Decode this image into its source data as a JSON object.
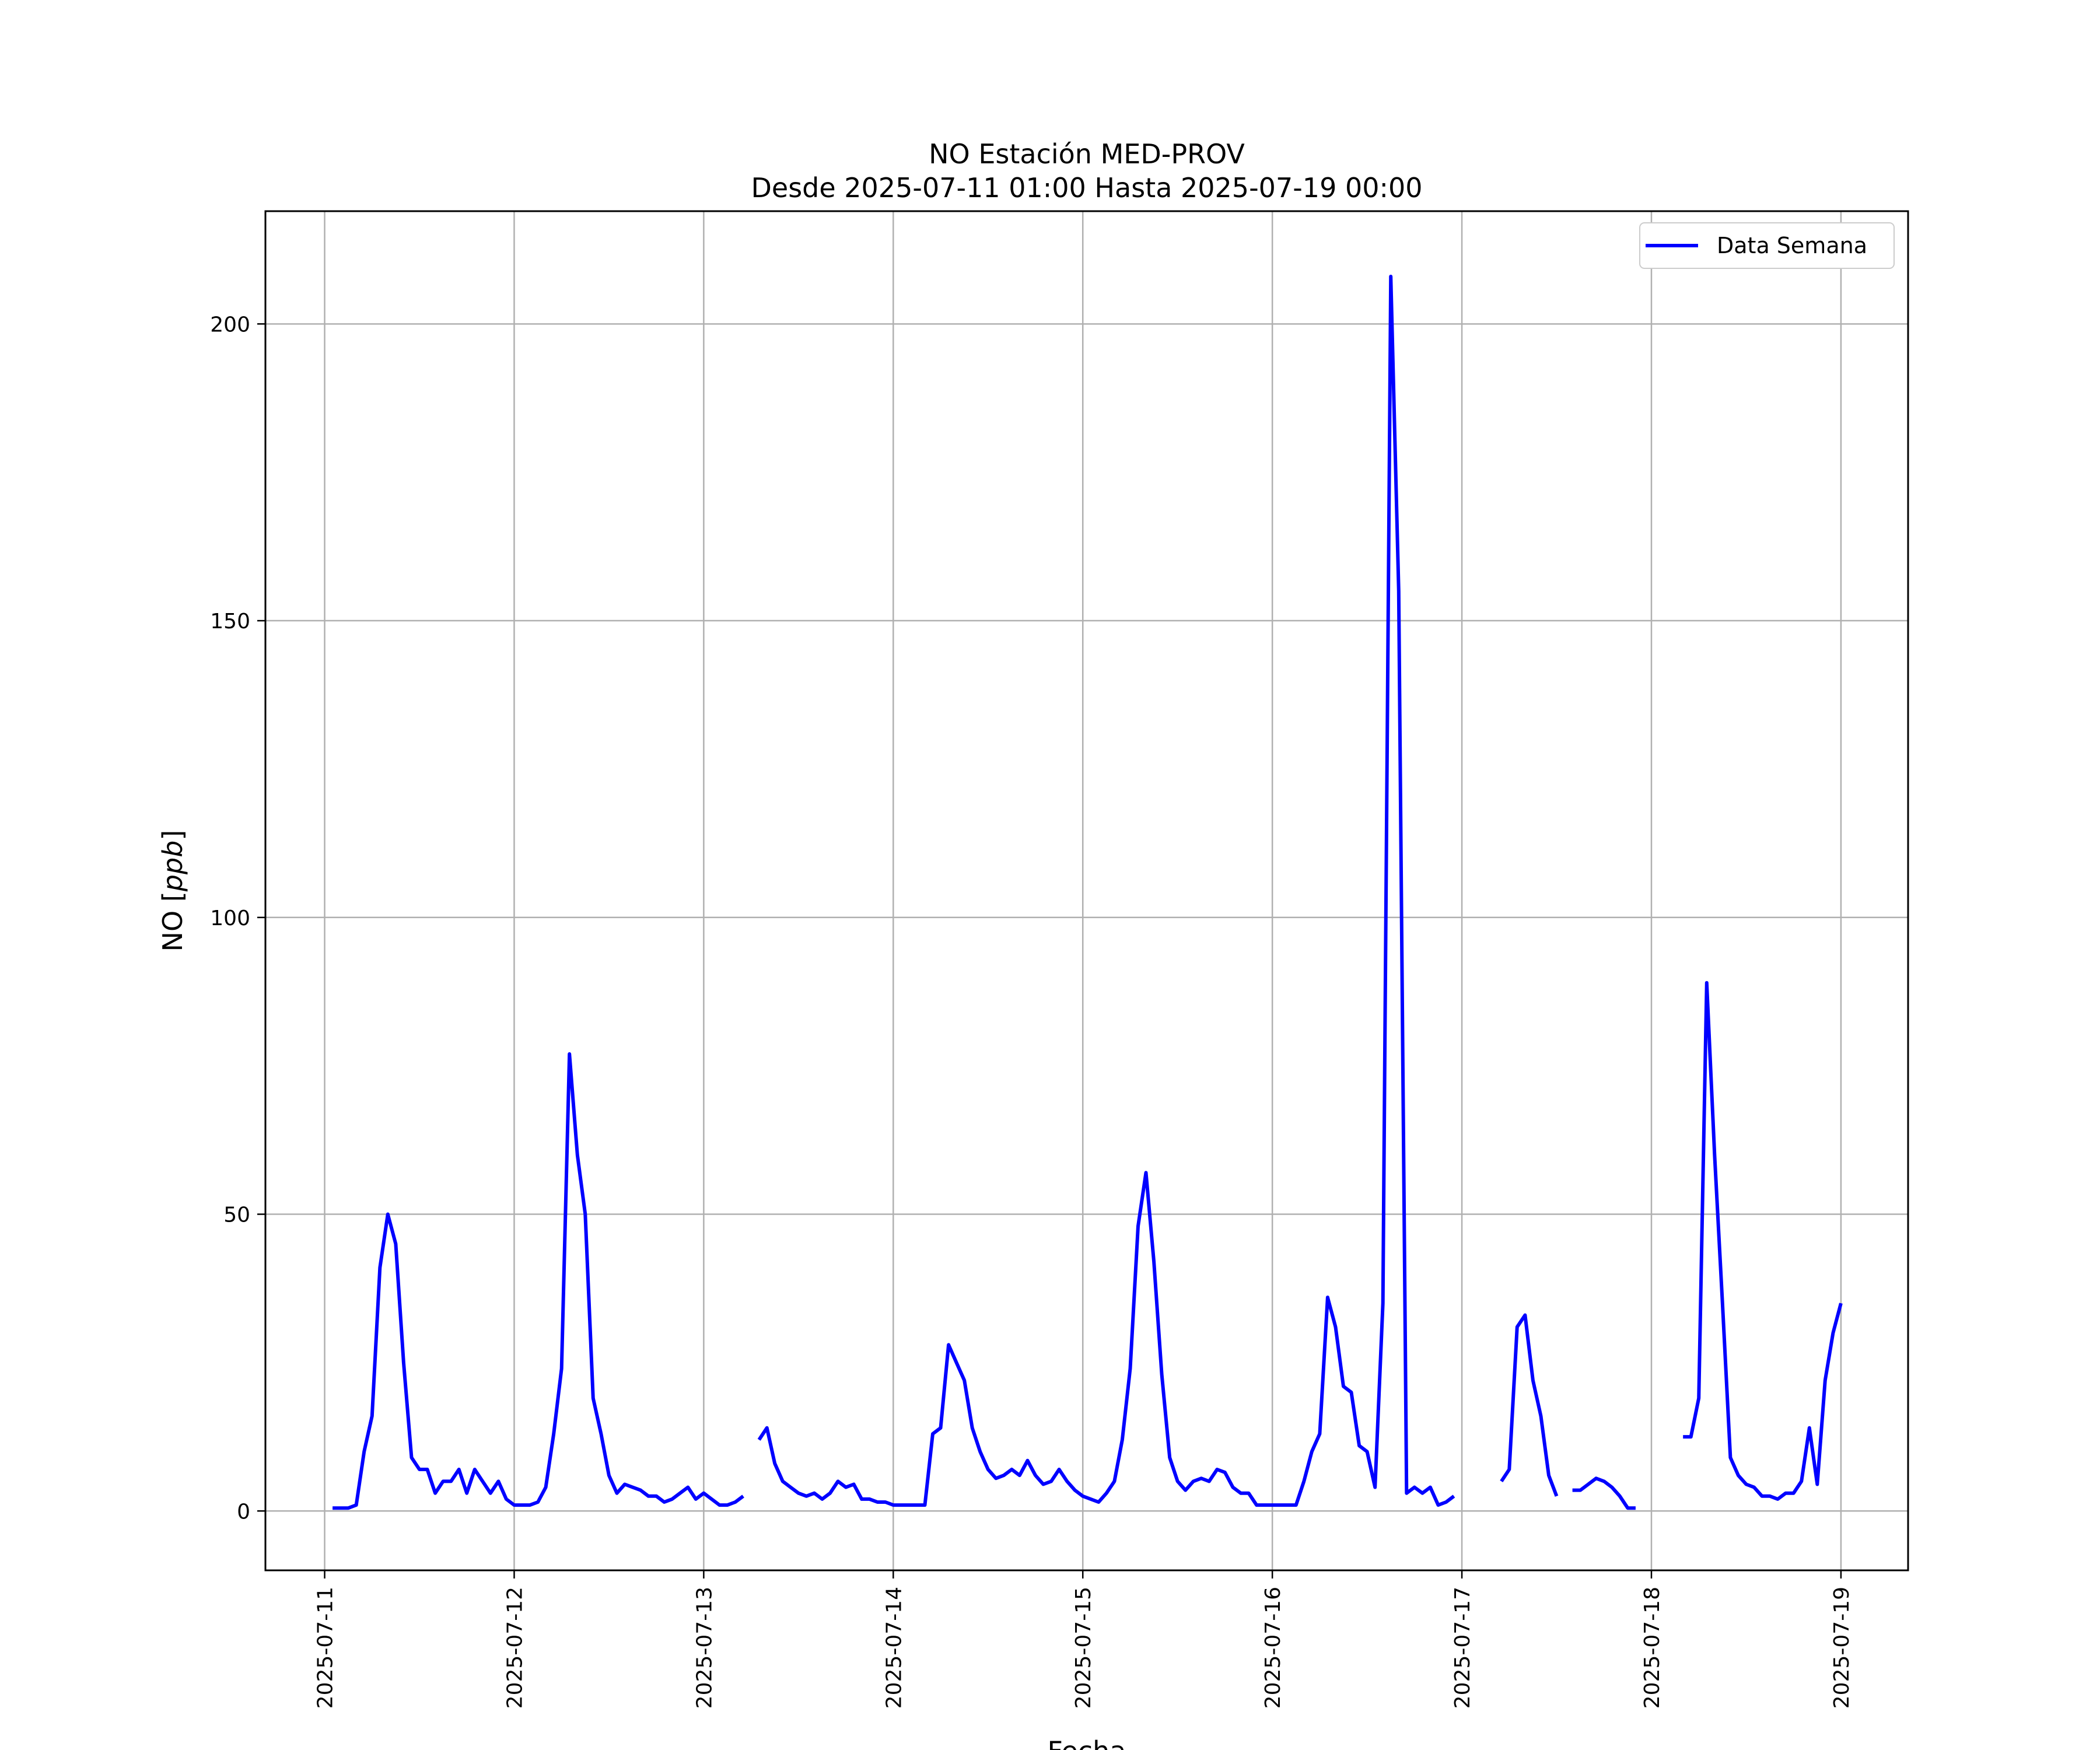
{
  "chart_data": {
    "type": "line",
    "title": "NO Estación MED-PROV",
    "subtitle": "Desde 2025-07-11 01:00 Hasta 2025-07-19 00:00",
    "xlabel": "Fecha",
    "ylabel": "NO [ppb]",
    "ylabel_main": "NO [",
    "ylabel_italic": "ppb",
    "ylabel_close": "]",
    "xlim": [
      "2025-07-10 16:30",
      "2025-07-19 08:30"
    ],
    "ylim": [
      -10,
      219
    ],
    "x_ticks": [
      "2025-07-11",
      "2025-07-12",
      "2025-07-13",
      "2025-07-14",
      "2025-07-15",
      "2025-07-16",
      "2025-07-17",
      "2025-07-18",
      "2025-07-19"
    ],
    "y_ticks": [
      0,
      50,
      100,
      150,
      200
    ],
    "y_tick_labels": [
      "0",
      "50",
      "100",
      "150",
      "200"
    ],
    "grid": true,
    "legend_position": "top-right",
    "series": [
      {
        "name": "Data Semana",
        "color": "#0000ff",
        "segments": [
          {
            "start": "2025-07-11 01:00",
            "values": [
              0.5,
              0.5,
              0.5,
              1,
              10,
              16,
              41,
              50,
              45,
              25,
              9,
              7,
              7,
              3,
              5,
              5,
              7,
              3,
              7,
              5,
              3,
              5,
              2,
              1,
              1,
              1,
              1.5,
              4,
              13,
              24,
              77,
              60,
              50,
              19,
              13,
              6,
              3,
              4.5,
              4,
              3.5,
              2.5,
              2.5,
              1.5,
              2,
              3,
              4,
              2,
              3,
              2,
              1,
              1,
              1.5,
              2.5
            ]
          },
          {
            "start": "2025-07-13 07:00",
            "values": [
              12,
              14,
              8,
              5,
              4,
              3,
              2.5,
              3,
              2,
              3,
              5,
              4,
              4.5,
              2,
              2,
              1.5,
              1.5,
              1,
              1,
              1,
              1,
              1,
              13,
              14,
              28,
              25,
              22,
              14,
              10,
              7,
              5.5,
              6,
              7,
              6,
              8.5,
              6,
              4.5,
              5,
              7,
              5,
              3.5,
              2.5,
              2,
              1.5,
              3,
              5,
              12,
              24,
              48,
              57,
              42,
              23,
              9,
              5,
              3.5,
              5,
              5.5,
              5,
              7,
              6.5,
              4,
              3,
              3,
              1,
              1,
              1,
              1,
              1,
              1,
              5,
              10,
              13,
              36,
              31,
              21,
              20,
              11,
              10,
              4,
              35,
              208,
              155,
              3,
              4,
              3,
              4,
              1,
              1.5,
              2.5
            ]
          },
          {
            "start": "2025-07-17 05:00",
            "values": [
              5,
              7,
              31,
              33,
              22,
              16,
              6,
              2.5
            ]
          },
          {
            "start": "2025-07-17 14:00",
            "values": [
              3.5,
              3.5,
              4.5,
              5.5,
              5,
              4,
              2.5,
              0.5,
              0.5
            ]
          },
          {
            "start": "2025-07-18 04:00",
            "values": [
              12.5,
              12.5,
              19,
              89,
              60,
              35,
              9,
              6,
              4.5,
              4,
              2.5,
              2.5,
              2,
              3,
              3,
              5,
              14,
              4.5,
              22,
              30,
              35
            ]
          }
        ]
      }
    ]
  }
}
